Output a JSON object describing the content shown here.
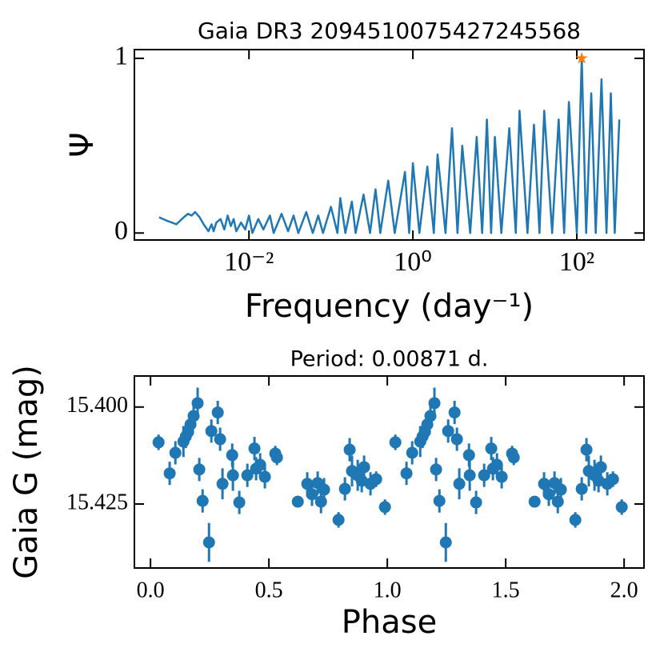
{
  "chart_data": [
    {
      "type": "line",
      "title": "Gaia DR3 2094510075427245568",
      "xlabel": "Frequency (day⁻¹)",
      "ylabel": "Ψ",
      "xscale": "log",
      "xlim": [
        0.0004,
        660
      ],
      "ylim": [
        -0.04,
        1.05
      ],
      "xticks": [
        {
          "value": 0.01,
          "label": "10⁻²"
        },
        {
          "value": 1,
          "label": "10⁰"
        },
        {
          "value": 100,
          "label": "10²"
        }
      ],
      "yticks": [
        0,
        1
      ],
      "x": [
        0.0008,
        0.001,
        0.0013,
        0.0016,
        0.0018,
        0.002,
        0.0022,
        0.0025,
        0.0028,
        0.003,
        0.0032,
        0.0035,
        0.0037,
        0.004,
        0.0045,
        0.005,
        0.0055,
        0.006,
        0.0065,
        0.007,
        0.008,
        0.009,
        0.01,
        0.011,
        0.013,
        0.015,
        0.018,
        0.02,
        0.025,
        0.03,
        0.035,
        0.04,
        0.05,
        0.06,
        0.07,
        0.08,
        0.1,
        0.12,
        0.13,
        0.15,
        0.18,
        0.2,
        0.25,
        0.3,
        0.35,
        0.4,
        0.5,
        0.6,
        0.8,
        0.9,
        1,
        1.2,
        1.5,
        1.8,
        2,
        2.5,
        3,
        3.5,
        4,
        5,
        6,
        7,
        8,
        9,
        10,
        12,
        15,
        18,
        20,
        25,
        30,
        35,
        40,
        50,
        60,
        70,
        80,
        100,
        114.8,
        130,
        150,
        170,
        200,
        230,
        260,
        290,
        330
      ],
      "series": [
        {
          "color": "#1f77b4",
          "values": [
            0.09,
            0.07,
            0.05,
            0.09,
            0.11,
            0.1,
            0.12,
            0.09,
            0.05,
            0.03,
            0.01,
            0.05,
            0.01,
            0.06,
            0.08,
            0.02,
            0.1,
            0.04,
            0.08,
            0.01,
            0.06,
            0.02,
            0.1,
            0.0,
            0.08,
            0.02,
            0.1,
            0.0,
            0.11,
            0.01,
            0.1,
            0.0,
            0.12,
            0.0,
            0.1,
            0.0,
            0.15,
            0.0,
            0.2,
            0.0,
            0.18,
            0.0,
            0.22,
            0.0,
            0.25,
            0.0,
            0.3,
            0.0,
            0.35,
            0.0,
            0.4,
            0.0,
            0.38,
            0.0,
            0.45,
            0.0,
            0.6,
            0.0,
            0.5,
            0.0,
            0.55,
            0.0,
            0.65,
            0.0,
            0.55,
            0.0,
            0.6,
            0.0,
            0.7,
            0.0,
            0.62,
            0.0,
            0.7,
            0.0,
            0.65,
            0.0,
            0.75,
            0.0,
            1.0,
            0.0,
            0.8,
            0.0,
            0.88,
            0.0,
            0.8,
            0.0,
            0.65
          ]
        }
      ],
      "marker": {
        "x": 114.8,
        "y": 1.0,
        "color": "#ff7f0e"
      }
    },
    {
      "type": "errorbar",
      "title": "Period: 0.00871 d.",
      "xlabel": "Phase",
      "ylabel": "Gaia G (mag)",
      "xlim": [
        -0.068,
        2.084
      ],
      "ylim": [
        15.392,
        15.4415
      ],
      "invert_y": true,
      "xticks": [
        {
          "value": 0,
          "label": "0.0"
        },
        {
          "value": 0.5,
          "label": "0.5"
        },
        {
          "value": 1,
          "label": "1.0"
        },
        {
          "value": 1.5,
          "label": "1.5"
        },
        {
          "value": 2,
          "label": "2.0"
        }
      ],
      "yticks": [
        {
          "value": 15.4,
          "label": "15.400"
        },
        {
          "value": 15.425,
          "label": "15.425"
        }
      ],
      "series": [
        {
          "color": "#1f77b4",
          "x": [
            0.034,
            0.081,
            0.105,
            0.139,
            0.149,
            0.159,
            0.169,
            0.182,
            0.199,
            0.206,
            0.22,
            0.247,
            0.257,
            0.284,
            0.294,
            0.304,
            0.345,
            0.348,
            0.375,
            0.409,
            0.439,
            0.446,
            0.463,
            0.483,
            0.527,
            0.534,
            0.622,
            0.662,
            0.682,
            0.706,
            0.72,
            0.733,
            0.794,
            0.821,
            0.841,
            0.851,
            0.875,
            0.892,
            0.902,
            0.929,
            0.953,
            0.99,
            1.034,
            1.081,
            1.105,
            1.139,
            1.149,
            1.159,
            1.169,
            1.182,
            1.199,
            1.206,
            1.22,
            1.247,
            1.257,
            1.284,
            1.294,
            1.304,
            1.345,
            1.348,
            1.375,
            1.409,
            1.439,
            1.446,
            1.463,
            1.483,
            1.527,
            1.534,
            1.622,
            1.662,
            1.682,
            1.706,
            1.72,
            1.733,
            1.794,
            1.821,
            1.841,
            1.851,
            1.875,
            1.892,
            1.902,
            1.929,
            1.953,
            1.99
          ],
          "values": [
            15.4091,
            15.4171,
            15.4118,
            15.4089,
            15.4076,
            15.4064,
            15.4045,
            15.4023,
            15.399,
            15.4161,
            15.4242,
            15.4349,
            15.4062,
            15.4014,
            15.4083,
            15.4198,
            15.4124,
            15.4176,
            15.4246,
            15.4176,
            15.4107,
            15.4159,
            15.4149,
            15.418,
            15.412,
            15.413,
            15.4244,
            15.4198,
            15.4225,
            15.4196,
            15.4244,
            15.4213,
            15.4291,
            15.4211,
            15.411,
            15.4165,
            15.4176,
            15.419,
            15.4155,
            15.4198,
            15.4186,
            15.4258,
            15.4091,
            15.4171,
            15.4118,
            15.4089,
            15.4076,
            15.4064,
            15.4045,
            15.4023,
            15.399,
            15.4161,
            15.4242,
            15.4349,
            15.4062,
            15.4014,
            15.4083,
            15.4198,
            15.4124,
            15.4176,
            15.4246,
            15.4176,
            15.4107,
            15.4159,
            15.4149,
            15.418,
            15.412,
            15.413,
            15.4244,
            15.4198,
            15.4225,
            15.4196,
            15.4244,
            15.4213,
            15.4291,
            15.4211,
            15.411,
            15.4165,
            15.4176,
            15.419,
            15.4155,
            15.4198,
            15.4186,
            15.4258
          ],
          "errors": [
            0.002,
            0.003,
            0.003,
            0.004,
            0.003,
            0.003,
            0.003,
            0.003,
            0.004,
            0.003,
            0.003,
            0.005,
            0.003,
            0.003,
            0.003,
            0.004,
            0.003,
            0.004,
            0.003,
            0.003,
            0.003,
            0.003,
            0.003,
            0.003,
            0.002,
            0.002,
            0.001,
            0.003,
            0.003,
            0.003,
            0.003,
            0.003,
            0.002,
            0.003,
            0.003,
            0.004,
            0.004,
            0.003,
            0.003,
            0.003,
            0.002,
            0.002,
            0.002,
            0.003,
            0.003,
            0.004,
            0.003,
            0.003,
            0.003,
            0.003,
            0.004,
            0.003,
            0.003,
            0.005,
            0.003,
            0.003,
            0.003,
            0.004,
            0.003,
            0.004,
            0.003,
            0.003,
            0.003,
            0.003,
            0.003,
            0.003,
            0.002,
            0.002,
            0.001,
            0.003,
            0.003,
            0.003,
            0.003,
            0.003,
            0.002,
            0.003,
            0.003,
            0.004,
            0.004,
            0.003,
            0.003,
            0.003,
            0.002,
            0.002
          ]
        }
      ]
    }
  ]
}
